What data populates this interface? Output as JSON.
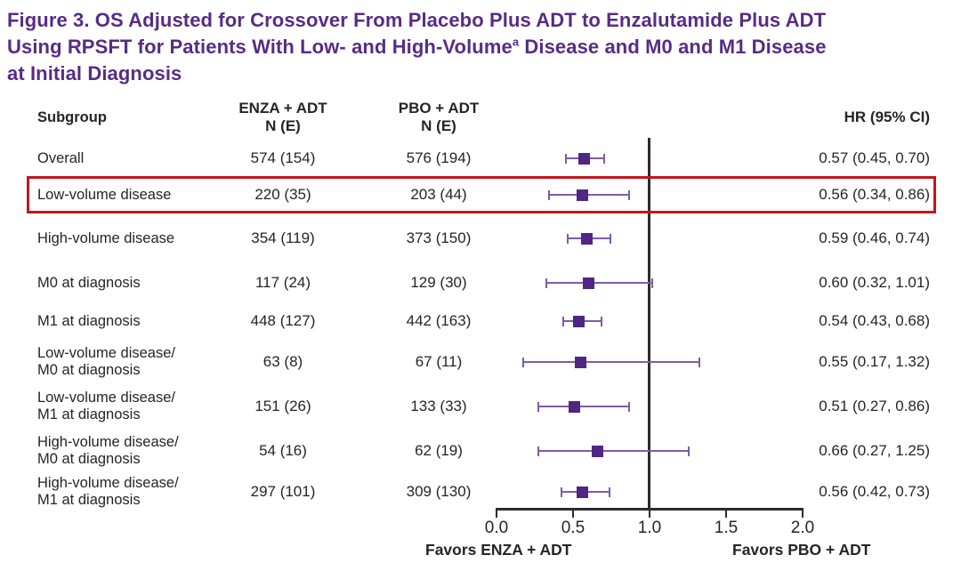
{
  "title": {
    "line1": "Figure 3. OS Adjusted for Crossover From Placebo Plus ADT to Enzalutamide Plus ADT",
    "line2_before_sup": "Using RPSFT for Patients With Low- and High-Volume",
    "superscript": "a",
    "line2_after_sup": " Disease and M0 and M1 Disease",
    "line3": "at Initial Diagnosis"
  },
  "columns": {
    "subgroup": "Subgroup",
    "enza_line1": "ENZA + ADT",
    "enza_line2": "N (E)",
    "pbo_line1": "PBO + ADT",
    "pbo_line2": "N (E)",
    "hr": "HR (95% CI)"
  },
  "axis": {
    "ticks": [
      "0.0",
      "0.5",
      "1.0",
      "1.5",
      "2.0"
    ],
    "favors_left": "Favors ENZA + ADT",
    "favors_right": "Favors PBO + ADT"
  },
  "colors": {
    "title_purple": "#582c85",
    "marker_purple": "#4f2683",
    "whisker_purple": "#7e5ba5",
    "highlight_red": "#c3161c",
    "text_dark": "#272425",
    "line_dark": "#2e2b2c"
  },
  "chart_data": {
    "type": "scatter",
    "subtype": "forest-plot",
    "title": "Figure 3. OS Adjusted for Crossover From Placebo Plus ADT to Enzalutamide Plus ADT Using RPSFT for Patients With Low- and High-Volume(a) Disease and M0 and M1 Disease at Initial Diagnosis",
    "xlim": [
      0,
      2
    ],
    "x_ticks": [
      0.0,
      0.5,
      1.0,
      1.5,
      2.0
    ],
    "reference_line_x": 1.0,
    "annotation_left": "Favors ENZA + ADT",
    "annotation_right": "Favors PBO + ADT",
    "highlighted_subgroup": "Low-volume disease",
    "series": [
      {
        "label": [
          "Overall"
        ],
        "enza": "574 (154)",
        "pbo": "576 (194)",
        "hr": 0.57,
        "ci_low": 0.45,
        "ci_high": 0.7,
        "hr_text": "0.57 (0.45, 0.70)"
      },
      {
        "label": [
          "Low-volume disease"
        ],
        "enza": "220 (35)",
        "pbo": "203 (44)",
        "hr": 0.56,
        "ci_low": 0.34,
        "ci_high": 0.86,
        "hr_text": "0.56 (0.34, 0.86)",
        "highlight": true
      },
      {
        "label": [
          "High-volume disease"
        ],
        "enza": "354 (119)",
        "pbo": "373 (150)",
        "hr": 0.59,
        "ci_low": 0.46,
        "ci_high": 0.74,
        "hr_text": "0.59 (0.46, 0.74)"
      },
      {
        "label": [
          "M0 at diagnosis"
        ],
        "enza": "117 (24)",
        "pbo": "129 (30)",
        "hr": 0.6,
        "ci_low": 0.32,
        "ci_high": 1.01,
        "hr_text": "0.60 (0.32, 1.01)"
      },
      {
        "label": [
          "M1 at diagnosis"
        ],
        "enza": "448 (127)",
        "pbo": "442 (163)",
        "hr": 0.54,
        "ci_low": 0.43,
        "ci_high": 0.68,
        "hr_text": "0.54 (0.43, 0.68)"
      },
      {
        "label": [
          "Low-volume disease/",
          "M0 at diagnosis"
        ],
        "enza": "63 (8)",
        "pbo": "67 (11)",
        "hr": 0.55,
        "ci_low": 0.17,
        "ci_high": 1.32,
        "hr_text": "0.55 (0.17, 1.32)"
      },
      {
        "label": [
          "Low-volume disease/",
          "M1 at diagnosis"
        ],
        "enza": "151 (26)",
        "pbo": "133 (33)",
        "hr": 0.51,
        "ci_low": 0.27,
        "ci_high": 0.86,
        "hr_text": "0.51 (0.27, 0.86)"
      },
      {
        "label": [
          "High-volume disease/",
          "M0 at diagnosis"
        ],
        "enza": "54 (16)",
        "pbo": "62 (19)",
        "hr": 0.66,
        "ci_low": 0.27,
        "ci_high": 1.25,
        "hr_text": "0.66 (0.27, 1.25)"
      },
      {
        "label": [
          "High-volume disease/",
          "M1 at diagnosis"
        ],
        "enza": "297 (101)",
        "pbo": "309 (130)",
        "hr": 0.56,
        "ci_low": 0.42,
        "ci_high": 0.73,
        "hr_text": "0.56 (0.42, 0.73)"
      }
    ]
  }
}
